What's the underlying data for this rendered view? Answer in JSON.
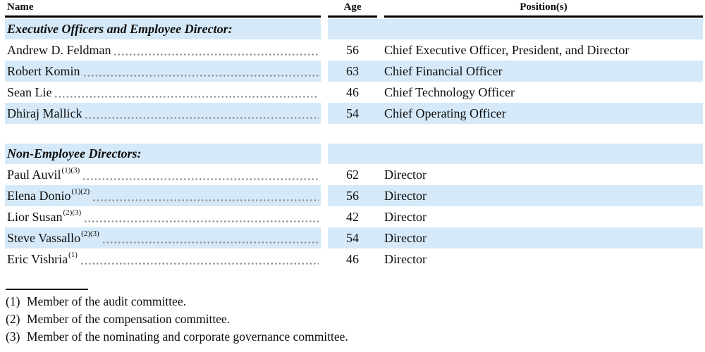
{
  "table": {
    "columns": {
      "name": "Name",
      "age": "Age",
      "positions": "Position(s)"
    },
    "sections": [
      {
        "header": "Executive Officers and Employee Director:",
        "rows": [
          {
            "name": "Andrew D. Feldman",
            "sup": "",
            "age": "56",
            "position": "Chief Executive Officer, President, and Director"
          },
          {
            "name": "Robert Komin",
            "sup": "",
            "age": "63",
            "position": "Chief Financial Officer"
          },
          {
            "name": "Sean Lie",
            "sup": "",
            "age": "46",
            "position": "Chief Technology Officer"
          },
          {
            "name": "Dhiraj Mallick",
            "sup": "",
            "age": "54",
            "position": "Chief Operating Officer"
          }
        ]
      },
      {
        "header": "Non-Employee Directors:",
        "rows": [
          {
            "name": "Paul Auvil",
            "sup": "(1)(3)",
            "age": "62",
            "position": "Director"
          },
          {
            "name": "Elena Donio",
            "sup": "(1)(2)",
            "age": "56",
            "position": "Director"
          },
          {
            "name": "Lior Susan",
            "sup": "(2)(3)",
            "age": "42",
            "position": "Director"
          },
          {
            "name": "Steve Vassallo",
            "sup": "(2)(3)",
            "age": "54",
            "position": "Director"
          },
          {
            "name": "Eric Vishria",
            "sup": "(1)",
            "age": "46",
            "position": "Director"
          }
        ]
      }
    ]
  },
  "footnotes": {
    "items": [
      {
        "marker": "(1)",
        "text": "Member of the audit committee."
      },
      {
        "marker": "(2)",
        "text": "Member of the compensation committee."
      },
      {
        "marker": "(3)",
        "text": "Member of the nominating and corporate governance committee."
      }
    ]
  },
  "colors": {
    "band_blue": "#d5e9f8",
    "text": "#0d0d0d",
    "leader_dot": "#8e8e8e",
    "rule_black": "#000000"
  }
}
